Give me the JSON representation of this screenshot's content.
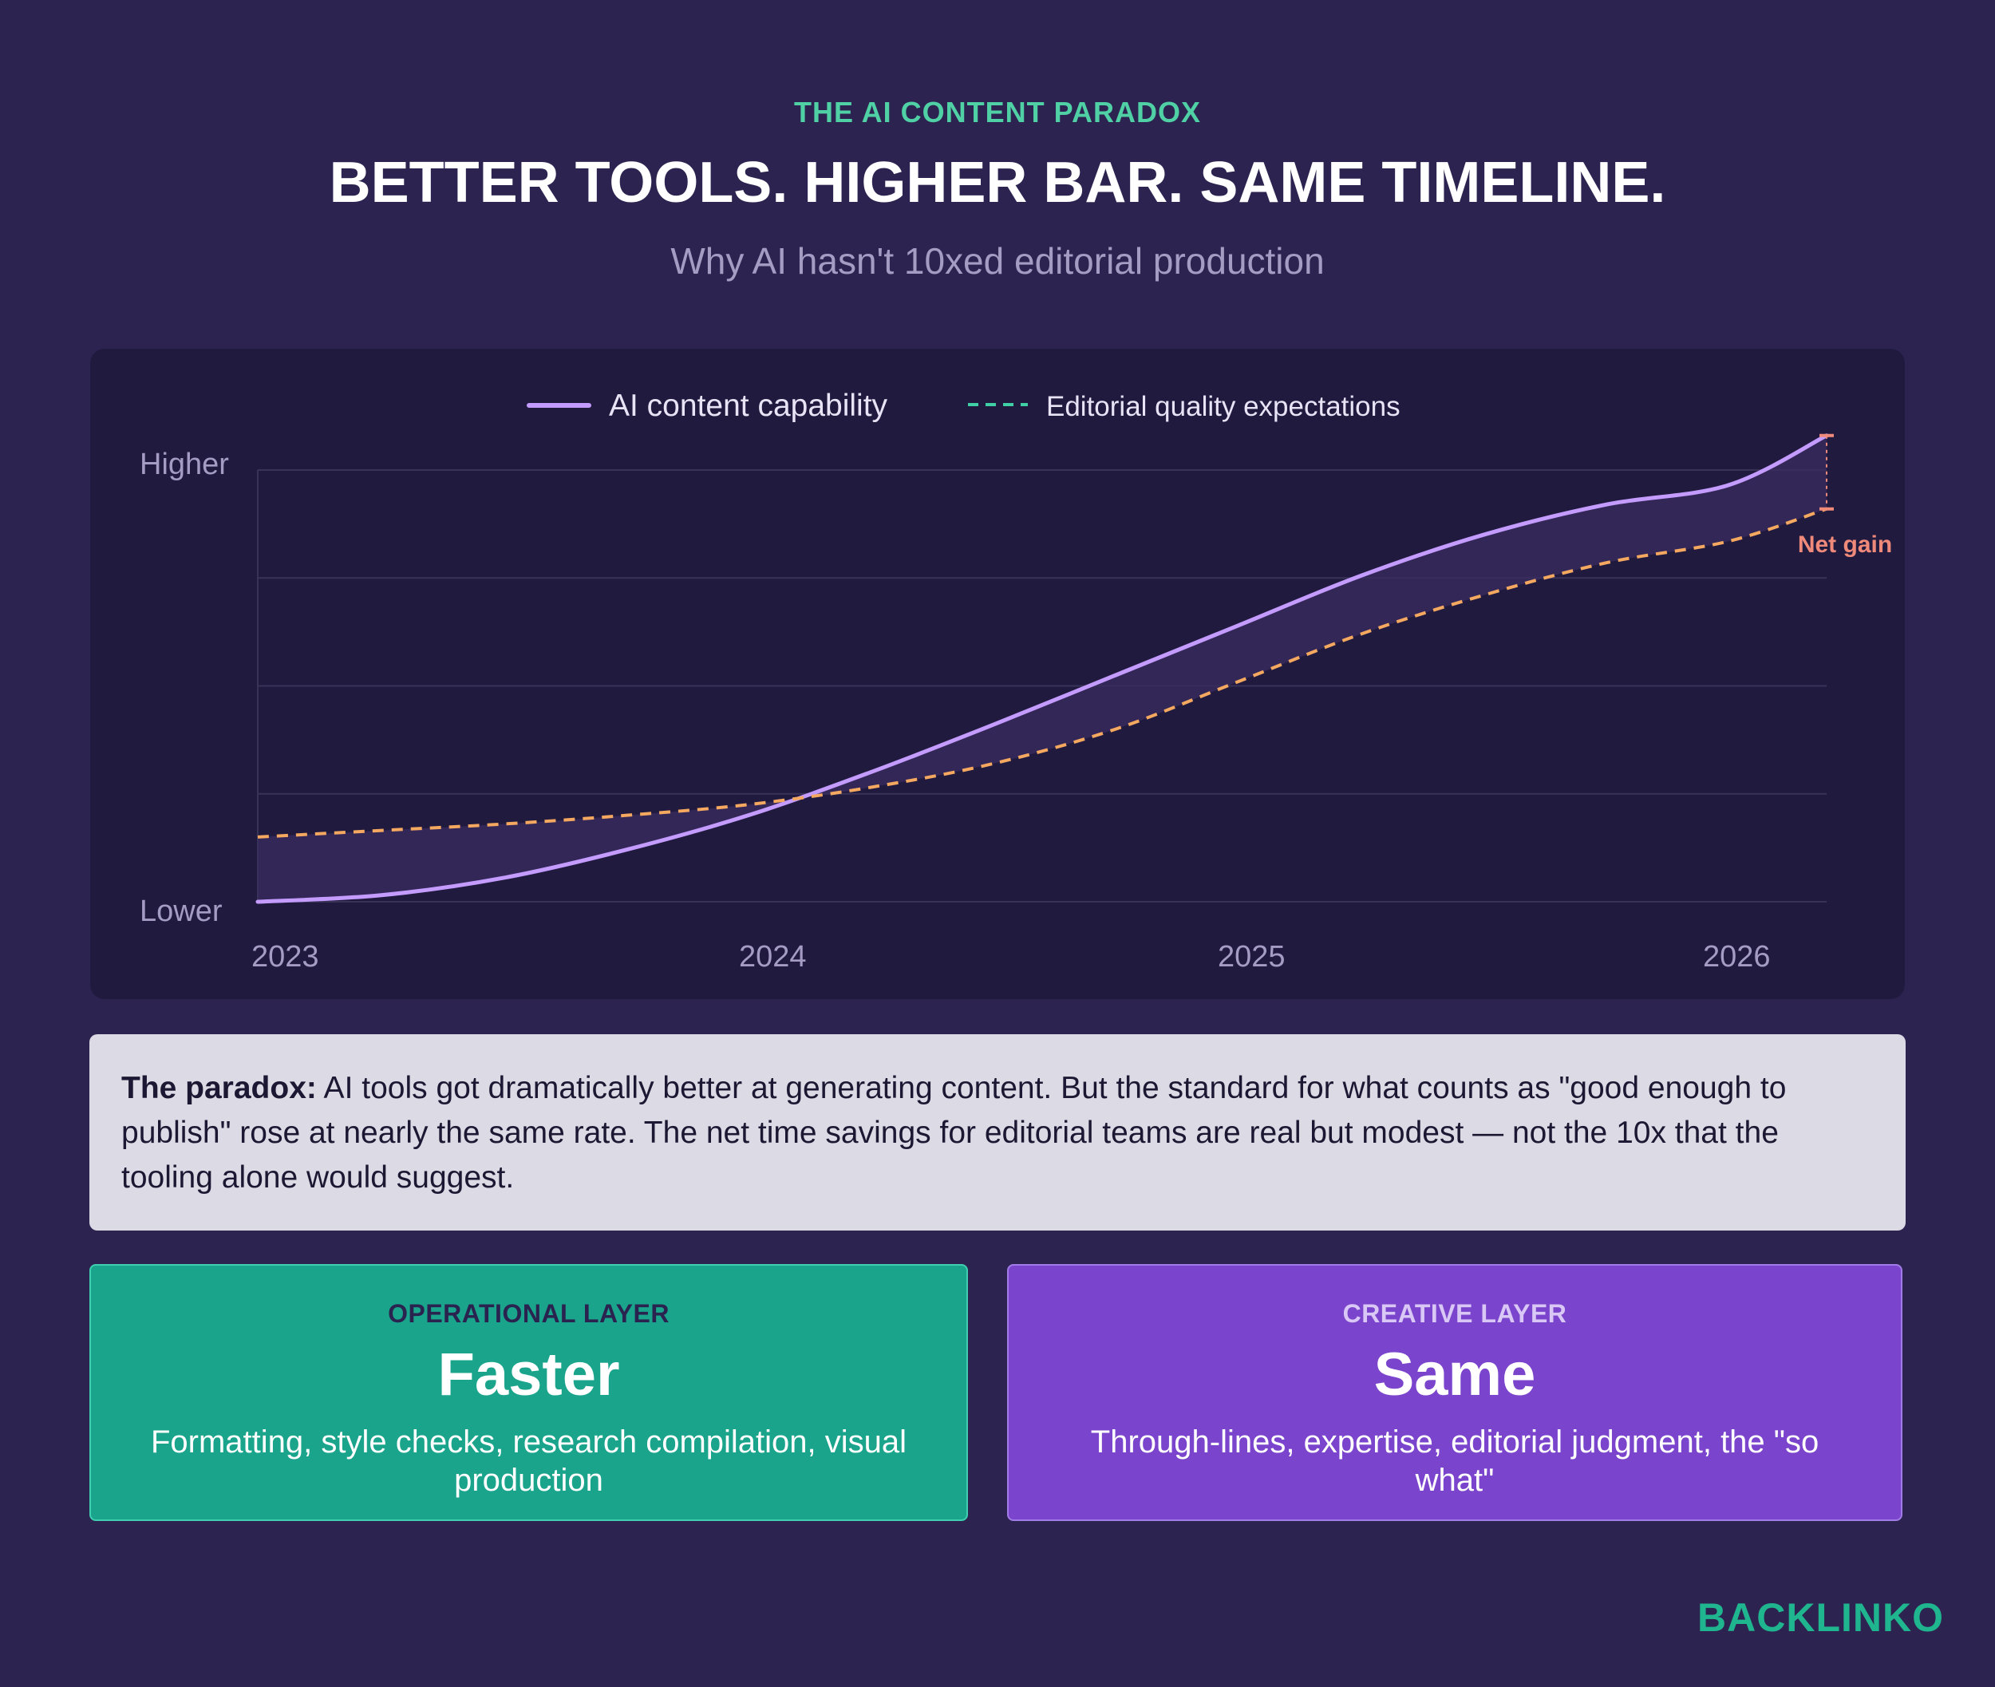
{
  "header": {
    "eyebrow": "THE AI CONTENT PARADOX",
    "title": "BETTER TOOLS. HIGHER BAR. SAME TIMELINE.",
    "subtitle": "Why AI hasn't 10xed editorial production"
  },
  "chart_data": {
    "type": "line",
    "title": "",
    "xlabel": "",
    "ylabel": "",
    "x_ticks": [
      "2023",
      "2024",
      "2025",
      "2026"
    ],
    "x_range": [
      2023,
      2026.2
    ],
    "y_ticks": [
      "Lower",
      "Higher"
    ],
    "ylim": [
      0,
      100
    ],
    "grid": true,
    "legend_position": "top-center",
    "series": [
      {
        "name": "AI content capability",
        "style": "solid",
        "color": "#c49bff",
        "x": [
          2023,
          2023.25,
          2023.5,
          2023.75,
          2024,
          2024.25,
          2024.5,
          2024.75,
          2025,
          2025.25,
          2025.5,
          2025.75,
          2026,
          2026.2
        ],
        "y": [
          0,
          1.5,
          5.5,
          12,
          20,
          30,
          41,
          52.5,
          64,
          75.5,
          85,
          92,
          96.5,
          108
        ]
      },
      {
        "name": "Editorial quality expectations",
        "style": "dashed",
        "color": "#f5a85f",
        "x": [
          2023,
          2023.25,
          2023.5,
          2023.75,
          2024,
          2024.25,
          2024.5,
          2024.75,
          2025,
          2025.25,
          2025.5,
          2025.75,
          2026,
          2026.2
        ],
        "y": [
          15,
          16.5,
          18,
          20,
          22.5,
          26.5,
          32,
          40,
          51,
          62,
          71,
          78.5,
          83.5,
          91
        ]
      }
    ],
    "annotations": [
      {
        "text": "Net gain",
        "color": "#ef8a7a",
        "x": 2026.2
      }
    ]
  },
  "callout": {
    "lead": "The paradox:",
    "text": " AI tools got dramatically better at generating content. But the standard for what counts as \"good enough to publish\" rose at nearly the same rate. The net time savings for editorial teams are real but modest — not the 10x that the tooling alone would suggest."
  },
  "cards": {
    "operational": {
      "label": "OPERATIONAL LAYER",
      "value": "Faster",
      "description": "Formatting, style checks, research compilation, visual production"
    },
    "creative": {
      "label": "CREATIVE LAYER",
      "value": "Same",
      "description": "Through-lines, expertise, editorial judgment, the \"so what\""
    }
  },
  "brand": {
    "logo_text": "BACKLINKO"
  }
}
